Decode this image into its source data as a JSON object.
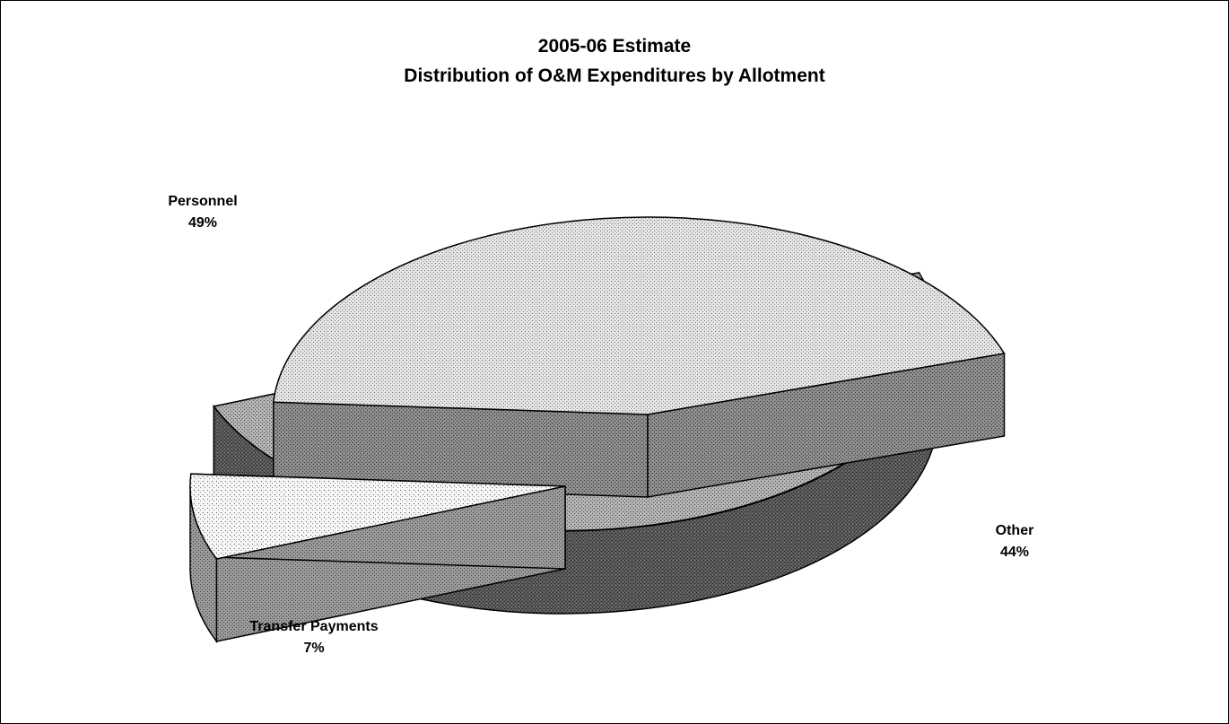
{
  "chart_data": {
    "type": "pie",
    "title": "2005-06 Estimate",
    "subtitle": "Distribution of O&M Expenditures by Allotment",
    "style": "3d-exploded",
    "categories": [
      "Personnel",
      "Transfer Payments",
      "Other"
    ],
    "values": [
      49,
      7,
      44
    ],
    "labels": [
      {
        "name": "Personnel",
        "percent": "49%"
      },
      {
        "name": "Transfer Payments",
        "percent": "7%"
      },
      {
        "name": "Other",
        "percent": "44%"
      }
    ],
    "legend": "none",
    "colors": {
      "Personnel": "#9a9a9a",
      "Transfer Payments": "#ececec",
      "Other": "#d6d6d6"
    }
  }
}
